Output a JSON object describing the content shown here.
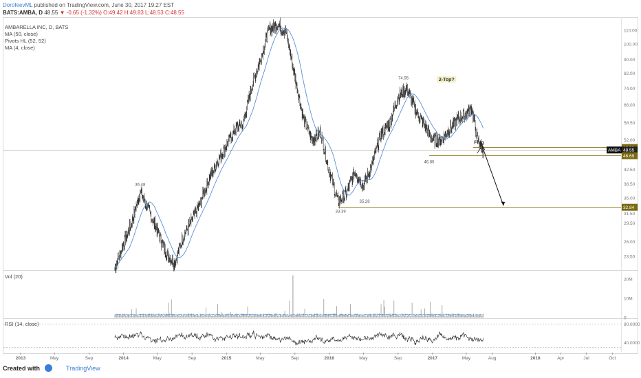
{
  "header": {
    "user": "DorofeevML",
    "published": "published on TradingView.com, June 30, 2017 19:27 EST",
    "symbol_line": "BATS:AMBA, D",
    "last": "48.55",
    "change": "▼ -0.65 (-1.32%)",
    "ohlc": "O:49.42 H:49.83 L:48.53 C:48.55"
  },
  "legend": {
    "title": "AMBARELLA INC, D, BATS",
    "items": [
      "MA (50, close)",
      "Pivots HL (52, 52)",
      "MA (4, close)"
    ],
    "vol": "Vol (20)",
    "rsi": "RSI (14, close)"
  },
  "footer": {
    "created": "Created with",
    "brand": "TradingView"
  },
  "colors": {
    "candle": "#222222",
    "ma": "#5b8fd6",
    "level": "#8a7a1a",
    "badge": "#7a6a10",
    "arrow": "#111111"
  },
  "chart_data": [
    {
      "type": "line",
      "panel": "price",
      "y_scale": "log",
      "ylim": [
        21.5,
        119
      ],
      "x_ticks": [
        "2013",
        "May",
        "Sep",
        "2014",
        "May",
        "Sep",
        "2015",
        "May",
        "Sep",
        "2016",
        "May",
        "Sep",
        "2017",
        "May",
        "Aug",
        "2018",
        "Apr",
        "Jul",
        "Oct"
      ],
      "y_ticks": [
        "110.00",
        "100.00",
        "90.00",
        "82.00",
        "74.00",
        "66.00",
        "58.50",
        "52.00",
        "42.50",
        "38.50",
        "35.00",
        "31.50",
        "29.50",
        "26.00",
        "23.50"
      ],
      "series": [
        {
          "name": "AMBA daily close",
          "dates": [
            "2013-12-01",
            "2014-02-01",
            "2014-03-01",
            "2014-04-01",
            "2014-05-01",
            "2014-06-01",
            "2014-07-01",
            "2014-08-01",
            "2014-09-01",
            "2014-10-01",
            "2014-11-01",
            "2014-12-01",
            "2015-01-01",
            "2015-02-01",
            "2015-03-01",
            "2015-04-01",
            "2015-05-01",
            "2015-06-01",
            "2015-07-01",
            "2015-08-01",
            "2015-09-01",
            "2015-10-01",
            "2015-11-01",
            "2015-12-01",
            "2016-01-01",
            "2016-02-01",
            "2016-03-01",
            "2016-04-01",
            "2016-05-01",
            "2016-06-01",
            "2016-07-01",
            "2016-08-01",
            "2016-09-01",
            "2016-10-01",
            "2016-11-01",
            "2016-12-01",
            "2017-01-01",
            "2017-02-01",
            "2017-03-01",
            "2017-04-01",
            "2017-05-01",
            "2017-05-20",
            "2017-06-10",
            "2017-06-30"
          ],
          "values": [
            21.8,
            30,
            36.5,
            32,
            28,
            24,
            22.5,
            27,
            30,
            34,
            40,
            45,
            50,
            56,
            58,
            75,
            90,
            110,
            115,
            108,
            80,
            60,
            52,
            55,
            42,
            34,
            36,
            42,
            38,
            44,
            54,
            58,
            70,
            74,
            64,
            58,
            52,
            52,
            56,
            60,
            62,
            65,
            52,
            48.55
          ]
        }
      ],
      "annotations": [
        {
          "label": "36.48"
        },
        {
          "label": "33.39"
        },
        {
          "label": "35.28"
        },
        {
          "label": "74.95"
        },
        {
          "label": "46.80"
        },
        {
          "label": "2-Top?"
        },
        {
          "label": "Flag"
        }
      ],
      "levels": [
        {
          "value": 49.38,
          "label": "49.38"
        },
        {
          "value": 48.55,
          "label": "AMBA",
          "value_label": "48.55"
        },
        {
          "value": 46.69,
          "label": "46.69"
        },
        {
          "value": 32.84,
          "label": "32.84"
        }
      ]
    },
    {
      "type": "bar",
      "panel": "volume",
      "y_ticks": [
        "20M",
        "10M",
        "0"
      ],
      "ylim": [
        0,
        24
      ]
    },
    {
      "type": "line",
      "panel": "rsi",
      "y_ticks": [
        "80.0000",
        "40.0000"
      ],
      "ylim": [
        20,
        90
      ]
    }
  ]
}
